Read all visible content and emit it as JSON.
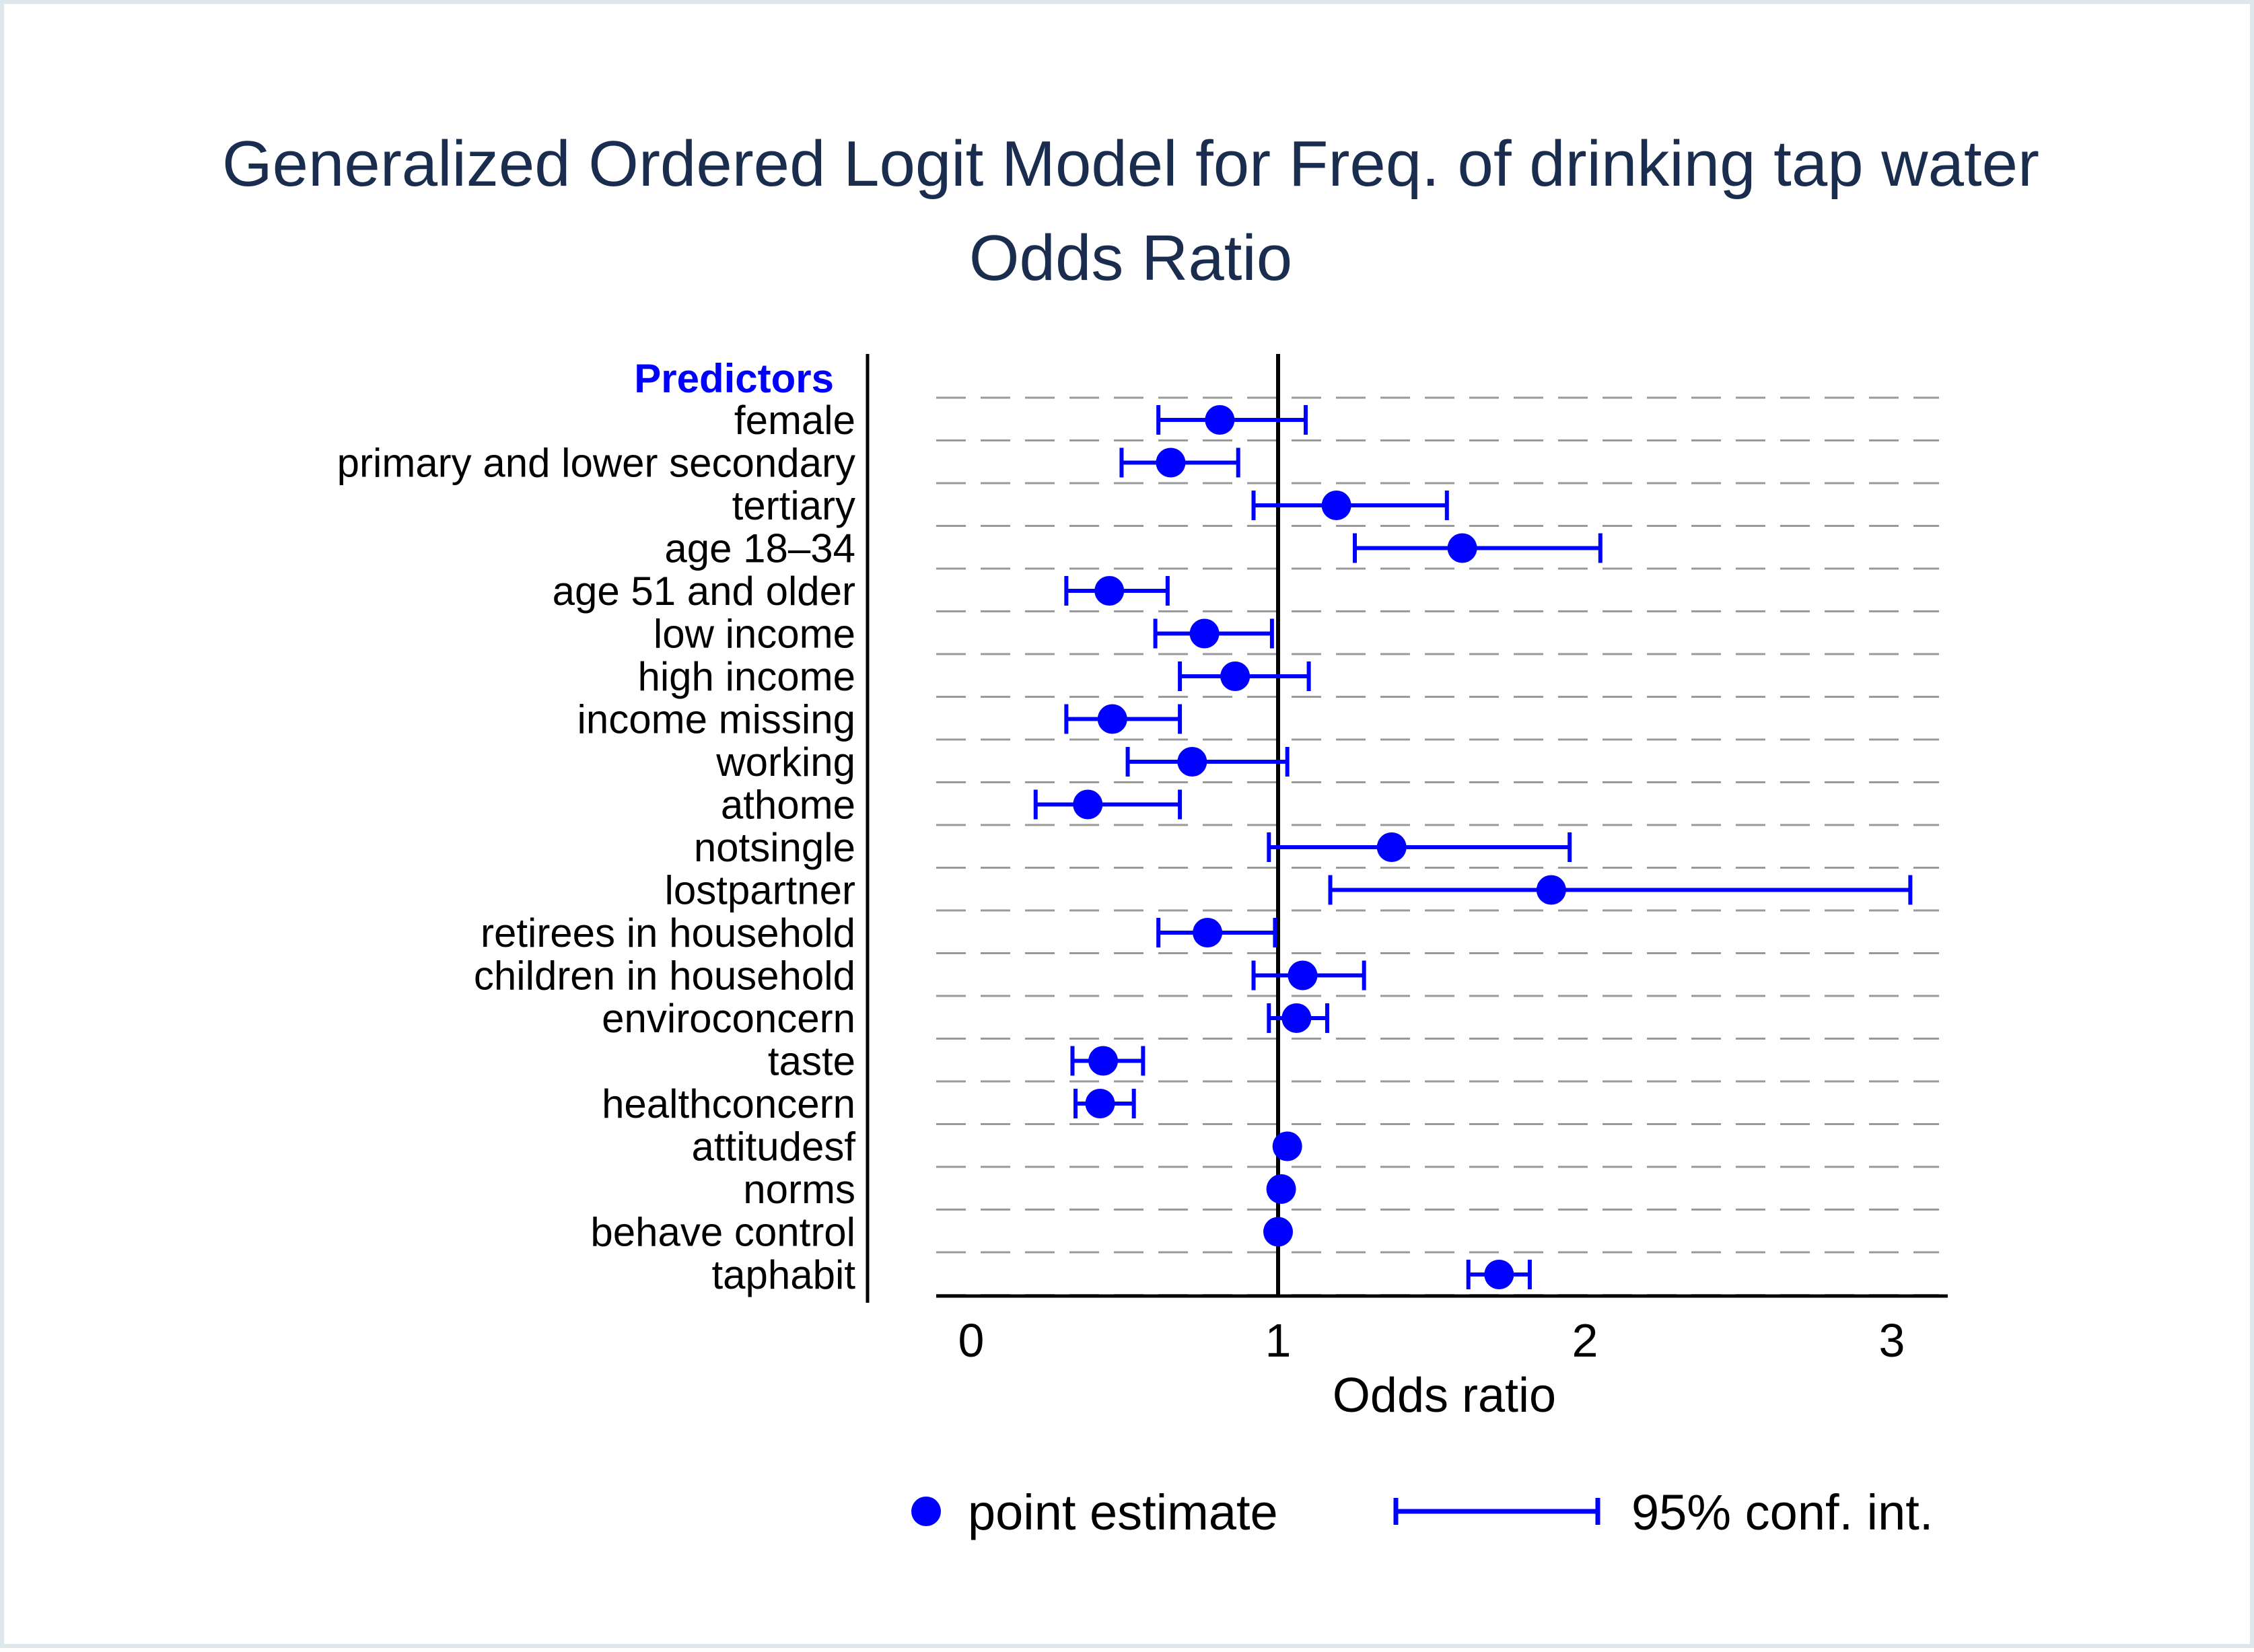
{
  "chart_data": {
    "type": "scatter",
    "title": "Generalized Ordered Logit Model for Freq. of drinking tap water",
    "subtitle": "Odds Ratio",
    "predictors_header": "Predictors",
    "xlabel": "Odds ratio",
    "xlim": [
      -0.1,
      3.2
    ],
    "xticks": [
      "0",
      "1",
      "2",
      "3"
    ],
    "reference_line": 1,
    "grid": "dashed horizontal",
    "legend_position": "bottom",
    "colors": {
      "marker": "#0000ff",
      "title": "#1a2d4f",
      "grid": "#999999"
    },
    "legend": [
      {
        "symbol": "dot",
        "label": "point estimate"
      },
      {
        "symbol": "interval",
        "label": "95% conf. int."
      }
    ],
    "rows": [
      {
        "label": "female",
        "estimate": 0.81,
        "lower": 0.61,
        "upper": 1.09
      },
      {
        "label": "primary and lower secondary",
        "estimate": 0.65,
        "lower": 0.49,
        "upper": 0.87
      },
      {
        "label": "tertiary",
        "estimate": 1.19,
        "lower": 0.92,
        "upper": 1.55
      },
      {
        "label": "age 18–34",
        "estimate": 1.6,
        "lower": 1.25,
        "upper": 2.05
      },
      {
        "label": "age 51 and older",
        "estimate": 0.45,
        "lower": 0.31,
        "upper": 0.64
      },
      {
        "label": "low income",
        "estimate": 0.76,
        "lower": 0.6,
        "upper": 0.98
      },
      {
        "label": "high income",
        "estimate": 0.86,
        "lower": 0.68,
        "upper": 1.1
      },
      {
        "label": "income missing",
        "estimate": 0.46,
        "lower": 0.31,
        "upper": 0.68
      },
      {
        "label": "working",
        "estimate": 0.72,
        "lower": 0.51,
        "upper": 1.03
      },
      {
        "label": "athome",
        "estimate": 0.38,
        "lower": 0.21,
        "upper": 0.68
      },
      {
        "label": "notsingle",
        "estimate": 1.37,
        "lower": 0.97,
        "upper": 1.95
      },
      {
        "label": "lostpartner",
        "estimate": 1.89,
        "lower": 1.17,
        "upper": 3.06
      },
      {
        "label": "retirees in household",
        "estimate": 0.77,
        "lower": 0.61,
        "upper": 0.99
      },
      {
        "label": "children in household",
        "estimate": 1.08,
        "lower": 0.92,
        "upper": 1.28
      },
      {
        "label": "enviroconcern",
        "estimate": 1.06,
        "lower": 0.97,
        "upper": 1.16
      },
      {
        "label": "taste",
        "estimate": 0.43,
        "lower": 0.33,
        "upper": 0.56
      },
      {
        "label": "healthconcern",
        "estimate": 0.42,
        "lower": 0.34,
        "upper": 0.53
      },
      {
        "label": "attitudesf",
        "estimate": 1.03,
        "lower": 1.02,
        "upper": 1.04
      },
      {
        "label": "norms",
        "estimate": 1.01,
        "lower": 1.0,
        "upper": 1.02
      },
      {
        "label": "behave control",
        "estimate": 1.0,
        "lower": 0.99,
        "upper": 1.01
      },
      {
        "label": "taphabit",
        "estimate": 1.72,
        "lower": 1.62,
        "upper": 1.82
      }
    ]
  }
}
